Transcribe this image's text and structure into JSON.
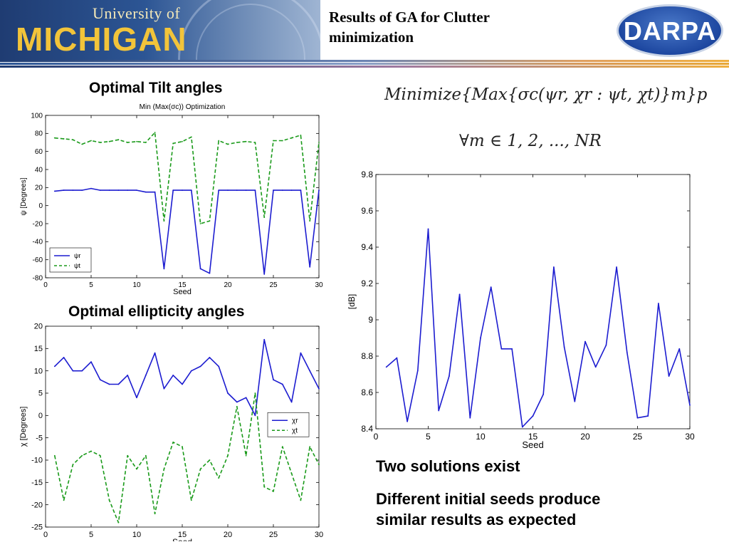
{
  "header": {
    "logo_top": "University of",
    "logo_main": "MICHIGAN",
    "title_line1": "Results of GA for Clutter",
    "title_line2": "minimization",
    "darpa_logo": "DARPA"
  },
  "headings": {
    "tilt": "Optimal Tilt angles",
    "ellipticity": "Optimal ellipticity angles"
  },
  "formula": {
    "line1": "Minimize{Max{σc(ψr, χr : ψt, χt)}m}p",
    "line2": "∀m ∈ 1, 2, ..., NR"
  },
  "captions": {
    "line1": "Two solutions exist",
    "line2": "Different initial seeds produce",
    "line3": "similar results as expected"
  },
  "colors": {
    "blue": "#1c1cd0",
    "green": "#1a9a1a"
  },
  "chart_data": [
    {
      "id": "tilt",
      "type": "line",
      "title": "Min (Max(σc)) Optimization",
      "xlabel": "Seed",
      "ylabel": "ψ [Degrees]",
      "xlim": [
        0,
        30
      ],
      "ylim": [
        -80,
        100
      ],
      "xticks": [
        0,
        5,
        10,
        15,
        20,
        25,
        30
      ],
      "yticks": [
        -80,
        -60,
        -40,
        -20,
        0,
        20,
        40,
        60,
        80,
        100
      ],
      "legend": "bottom-left",
      "x": [
        1,
        2,
        3,
        4,
        5,
        6,
        7,
        8,
        9,
        10,
        11,
        12,
        13,
        14,
        15,
        16,
        17,
        18,
        19,
        20,
        21,
        22,
        23,
        24,
        25,
        26,
        27,
        28,
        29,
        30
      ],
      "series": [
        {
          "name": "ψr",
          "color": "#1c1cd0",
          "dash": false,
          "values": [
            16,
            17,
            17,
            17,
            19,
            17,
            17,
            17,
            17,
            17,
            15,
            15,
            -70,
            17,
            17,
            17,
            -70,
            -75,
            17,
            17,
            17,
            17,
            17,
            -76,
            17,
            17,
            17,
            17,
            -68,
            17
          ]
        },
        {
          "name": "ψt",
          "color": "#1a9a1a",
          "dash": true,
          "values": [
            75,
            74,
            73,
            68,
            72,
            70,
            71,
            73,
            70,
            71,
            70,
            81,
            -17,
            69,
            71,
            76,
            -20,
            -17,
            72,
            68,
            70,
            71,
            70,
            -13,
            72,
            72,
            75,
            78,
            -17,
            70
          ]
        }
      ]
    },
    {
      "id": "ellipticity",
      "type": "line",
      "title": "",
      "xlabel": "Seed",
      "ylabel": "χ [Degrees]",
      "xlim": [
        0,
        30
      ],
      "ylim": [
        -25,
        20
      ],
      "xticks": [
        0,
        5,
        10,
        15,
        20,
        25,
        30
      ],
      "yticks": [
        -25,
        -20,
        -15,
        -10,
        -5,
        0,
        5,
        10,
        15,
        20
      ],
      "legend": "center-right",
      "x": [
        1,
        2,
        3,
        4,
        5,
        6,
        7,
        8,
        9,
        10,
        11,
        12,
        13,
        14,
        15,
        16,
        17,
        18,
        19,
        20,
        21,
        22,
        23,
        24,
        25,
        26,
        27,
        28,
        29,
        30
      ],
      "series": [
        {
          "name": "χr",
          "color": "#1c1cd0",
          "dash": false,
          "values": [
            11,
            13,
            10,
            10,
            12,
            8,
            7,
            7,
            9,
            4,
            9,
            14,
            6,
            9,
            7,
            10,
            11,
            13,
            11,
            5,
            3,
            4,
            0,
            17,
            8,
            7,
            3,
            14,
            10,
            6
          ]
        },
        {
          "name": "χt",
          "color": "#1a9a1a",
          "dash": true,
          "values": [
            -9,
            -19,
            -11,
            -9,
            -8,
            -9,
            -19,
            -24,
            -9,
            -12,
            -9,
            -22,
            -12,
            -6,
            -7,
            -19,
            -12,
            -10,
            -14,
            -9,
            2,
            -9,
            5,
            -16,
            -17,
            -7,
            -13,
            -19,
            -7,
            -11
          ]
        }
      ]
    },
    {
      "id": "sigma",
      "type": "line",
      "title": "",
      "xlabel": "Seed",
      "ylabel": "[dB]",
      "xlim": [
        0,
        30
      ],
      "ylim": [
        8.4,
        9.8
      ],
      "xticks": [
        0,
        5,
        10,
        15,
        20,
        25,
        30
      ],
      "yticks": [
        8.4,
        8.6,
        8.8,
        9,
        9.2,
        9.4,
        9.6,
        9.8
      ],
      "x": [
        1,
        2,
        3,
        4,
        5,
        6,
        7,
        8,
        9,
        10,
        11,
        12,
        13,
        14,
        15,
        16,
        17,
        18,
        19,
        20,
        21,
        22,
        23,
        24,
        25,
        26,
        27,
        28,
        29,
        30
      ],
      "series": [
        {
          "name": "",
          "color": "#1c1cd0",
          "dash": false,
          "values": [
            8.74,
            8.79,
            8.44,
            8.72,
            9.5,
            8.5,
            8.69,
            9.14,
            8.46,
            8.9,
            9.18,
            8.84,
            8.84,
            8.41,
            8.47,
            8.59,
            9.29,
            8.85,
            8.55,
            8.88,
            8.74,
            8.86,
            9.29,
            8.82,
            8.46,
            8.47,
            9.09,
            8.69,
            8.84,
            8.53
          ]
        }
      ]
    }
  ]
}
